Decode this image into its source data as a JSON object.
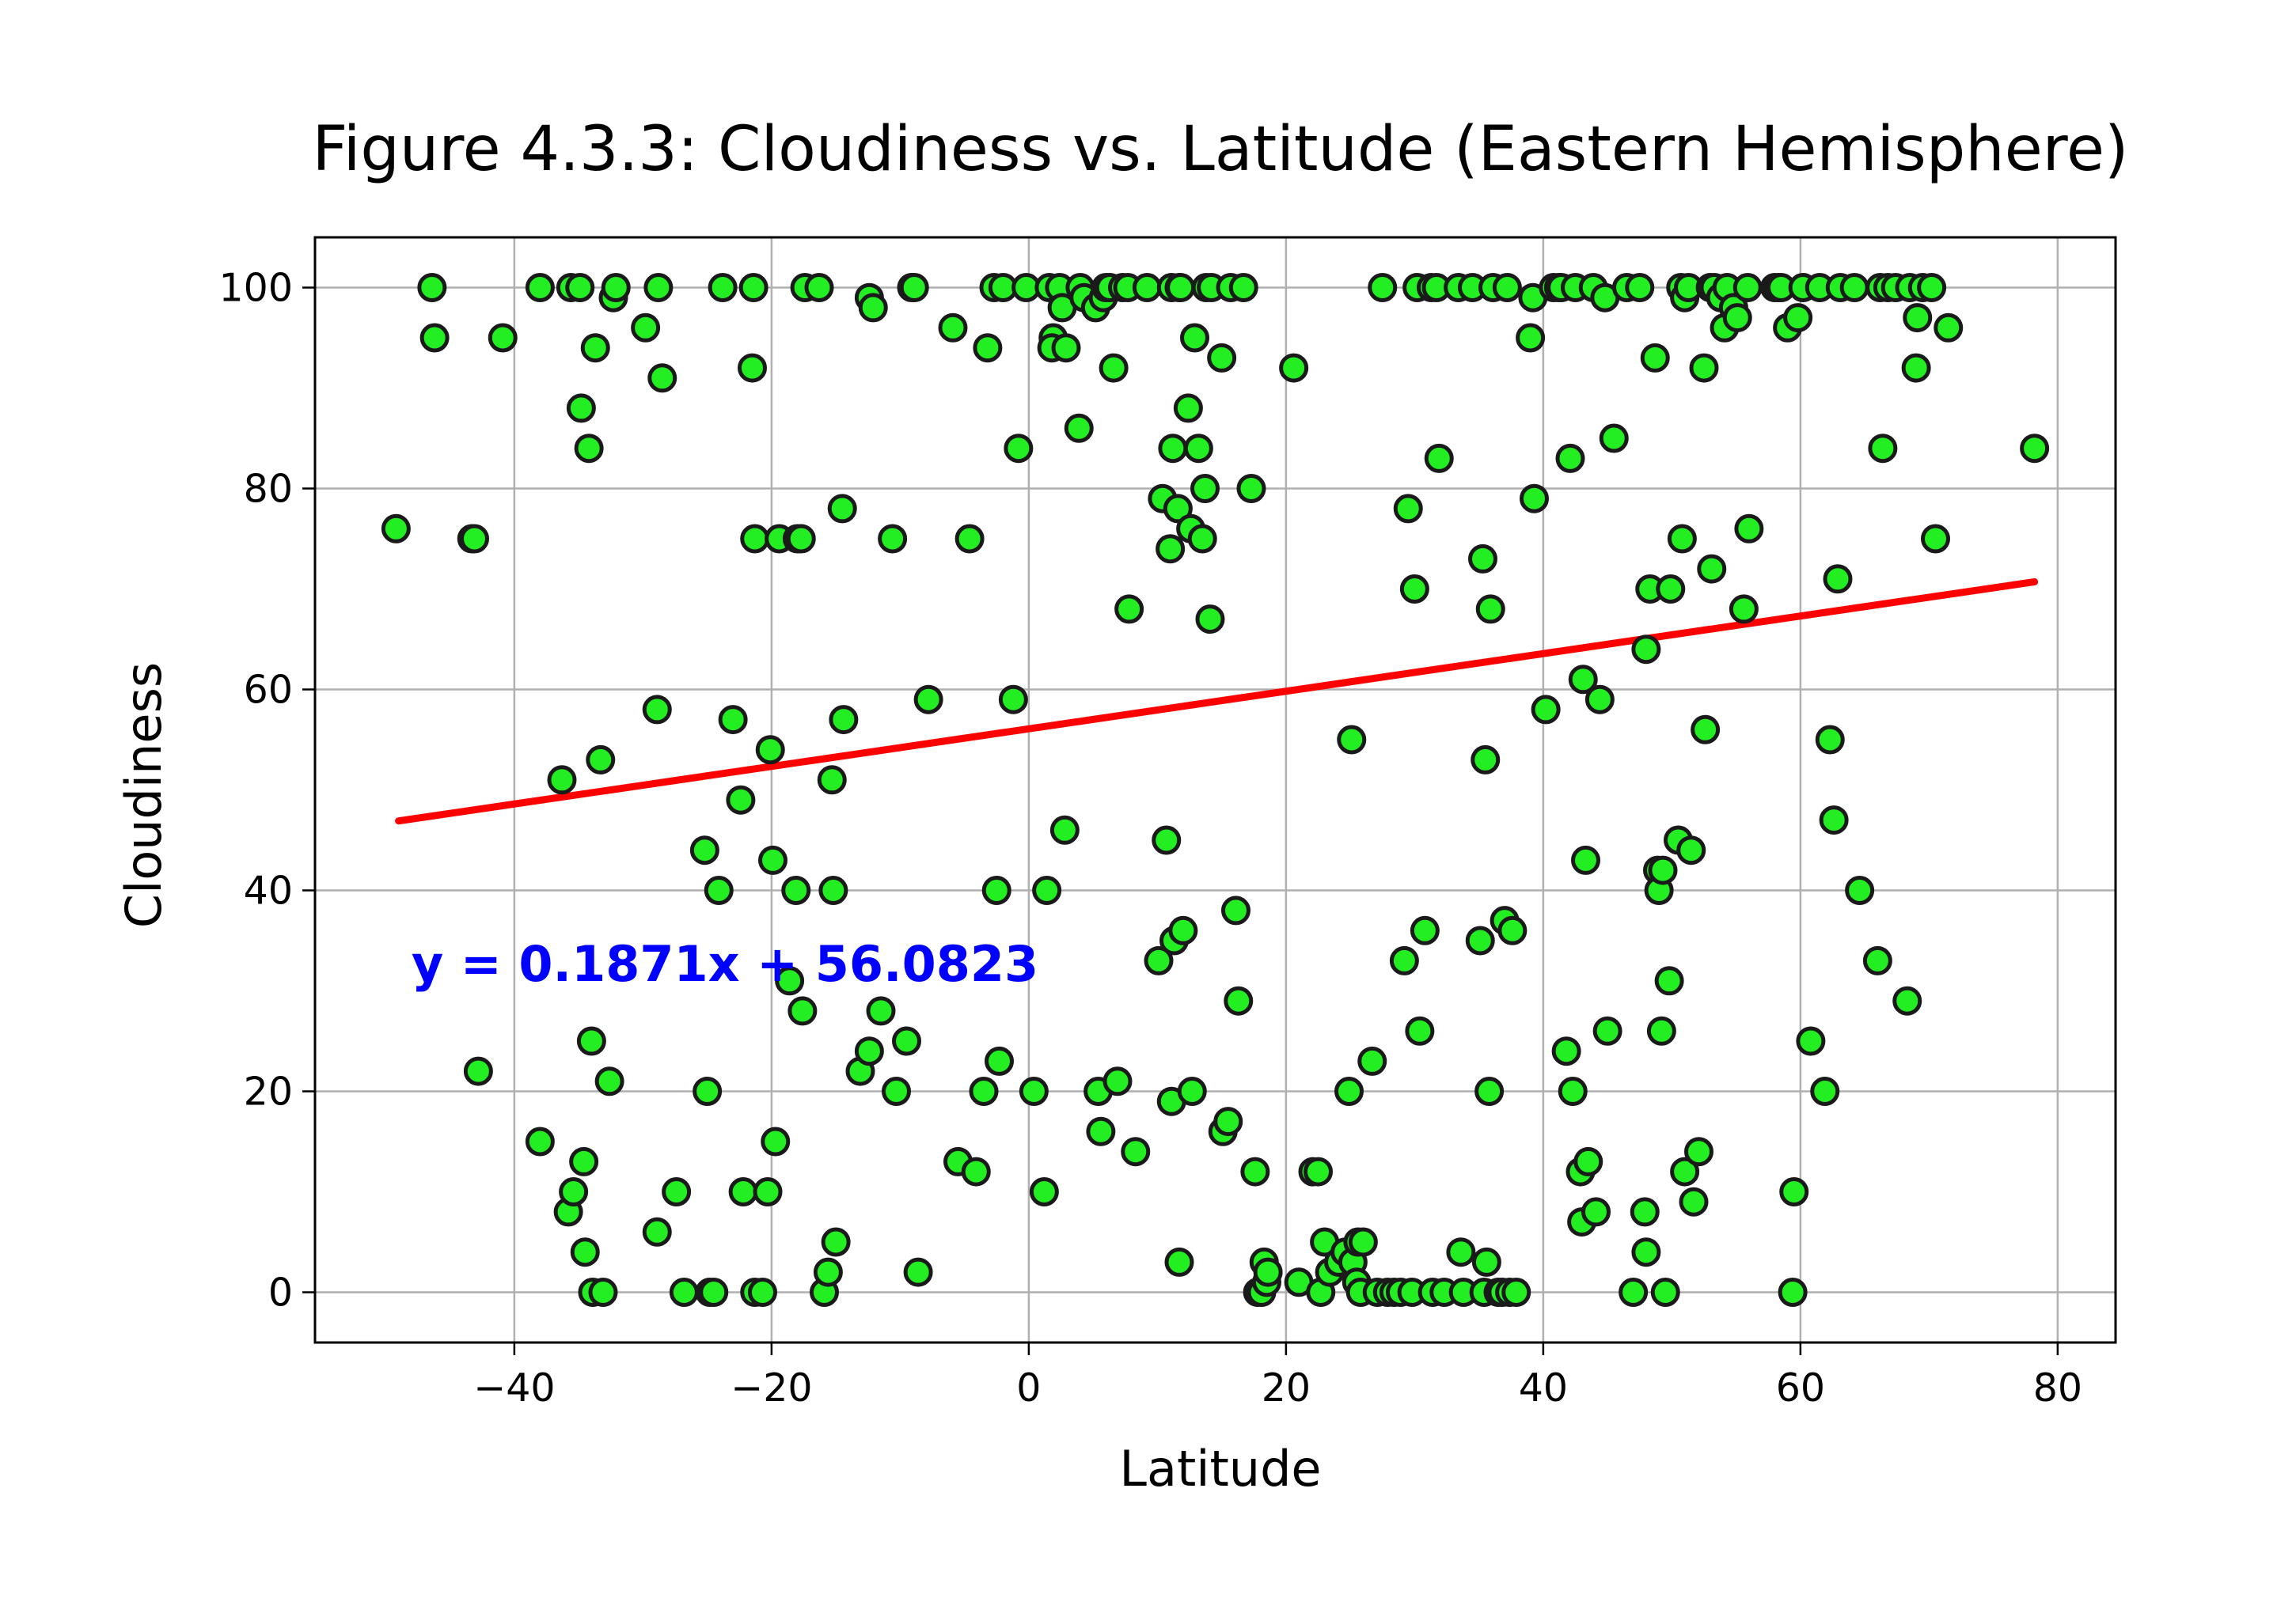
{
  "chart_data": {
    "type": "scatter",
    "title": "Figure 4.3.3: Cloudiness vs. Latitude (Eastern Hemisphere)",
    "xlabel": "Latitude",
    "ylabel": "Cloudiness",
    "xlim": [
      -55.5,
      84.5
    ],
    "ylim": [
      -5,
      105
    ],
    "xticks": [
      -40,
      -20,
      0,
      20,
      40,
      60,
      80
    ],
    "yticks": [
      0,
      20,
      40,
      60,
      80,
      100
    ],
    "xtick_labels": [
      "−40",
      "−20",
      "0",
      "20",
      "40",
      "60",
      "80"
    ],
    "ytick_labels": [
      "0",
      "20",
      "40",
      "60",
      "80",
      "100"
    ],
    "grid": true,
    "colors": {
      "point_fill": "#22ee22",
      "point_edge": "#1a1a1a",
      "regression_line": "#ff0000",
      "equation_text": "#0000ff"
    },
    "regression": {
      "equation": "y = 0.1871x + 56.0823",
      "slope": 0.1871,
      "intercept": 56.0823,
      "x_range": [
        -49,
        78.2
      ],
      "label_position_data": [
        -48,
        31
      ]
    },
    "series": [
      {
        "points": [
          [
            -49.2,
            76
          ],
          [
            -46.4,
            100
          ],
          [
            -46.2,
            95
          ],
          [
            -43.3,
            75
          ],
          [
            -43.1,
            75
          ],
          [
            -42.8,
            22
          ],
          [
            -40.9,
            95
          ],
          [
            -38,
            100
          ],
          [
            -38,
            15
          ],
          [
            -36.3,
            51
          ],
          [
            -35.8,
            8
          ],
          [
            -35.6,
            100
          ],
          [
            -35.4,
            10
          ],
          [
            -34.9,
            100
          ],
          [
            -34.8,
            88
          ],
          [
            -34.6,
            13
          ],
          [
            -34.5,
            4
          ],
          [
            -34.2,
            84
          ],
          [
            -34,
            25
          ],
          [
            -33.9,
            0
          ],
          [
            -33.7,
            94
          ],
          [
            -33.3,
            53
          ],
          [
            -33.1,
            0
          ],
          [
            -32.6,
            21
          ],
          [
            -32.3,
            99
          ],
          [
            -32.1,
            100
          ],
          [
            -29.8,
            96
          ],
          [
            -28.9,
            58
          ],
          [
            -28.8,
            100
          ],
          [
            -28.9,
            6
          ],
          [
            -28.5,
            91
          ],
          [
            -27.4,
            10
          ],
          [
            -26.8,
            0
          ],
          [
            -25.2,
            44
          ],
          [
            -25,
            20
          ],
          [
            -24.8,
            0
          ],
          [
            -24.5,
            0
          ],
          [
            -24.1,
            40
          ],
          [
            -23.8,
            100
          ],
          [
            -23,
            57
          ],
          [
            -22.4,
            49
          ],
          [
            -22.2,
            10
          ],
          [
            -21.5,
            92
          ],
          [
            -21.4,
            100
          ],
          [
            -21.3,
            75
          ],
          [
            -21.3,
            0
          ],
          [
            -20.7,
            0
          ],
          [
            -20.3,
            10
          ],
          [
            -20.1,
            54
          ],
          [
            -19.9,
            43
          ],
          [
            -19.7,
            15
          ],
          [
            -19.4,
            75
          ],
          [
            -18.6,
            31
          ],
          [
            -18.1,
            40
          ],
          [
            -18,
            75
          ],
          [
            -17.7,
            75
          ],
          [
            -17.6,
            28
          ],
          [
            -17.4,
            100
          ],
          [
            -16.3,
            100
          ],
          [
            -15.9,
            0
          ],
          [
            -15.6,
            2
          ],
          [
            -15.3,
            51
          ],
          [
            -15.2,
            40
          ],
          [
            -15,
            5
          ],
          [
            -14.4,
            57
          ],
          [
            -14.5,
            78
          ],
          [
            -13.1,
            22
          ],
          [
            -12.4,
            99
          ],
          [
            -12.4,
            24
          ],
          [
            -12.1,
            98
          ],
          [
            -11.5,
            28
          ],
          [
            -10.6,
            75
          ],
          [
            -10.3,
            20
          ],
          [
            -9.5,
            25
          ],
          [
            -9.1,
            100
          ],
          [
            -8.9,
            100
          ],
          [
            -8.6,
            2
          ],
          [
            -7.8,
            59
          ],
          [
            -5.9,
            96
          ],
          [
            -5.5,
            13
          ],
          [
            -4.6,
            75
          ],
          [
            -4.1,
            12
          ],
          [
            -3.5,
            20
          ],
          [
            -3.2,
            94
          ],
          [
            -2.7,
            100
          ],
          [
            -2.5,
            40
          ],
          [
            -2.3,
            23
          ],
          [
            -2,
            100
          ],
          [
            -1.2,
            59
          ],
          [
            -0.8,
            84
          ],
          [
            -0.2,
            100
          ],
          [
            0.4,
            20
          ],
          [
            1.2,
            10
          ],
          [
            1.4,
            40
          ],
          [
            1.6,
            100
          ],
          [
            1.9,
            95
          ],
          [
            1.8,
            94
          ],
          [
            2.4,
            100
          ],
          [
            2.6,
            98
          ],
          [
            2.8,
            46
          ],
          [
            2.9,
            94
          ],
          [
            3.9,
            86
          ],
          [
            4,
            100
          ],
          [
            4.3,
            99
          ],
          [
            5.2,
            98
          ],
          [
            5.4,
            20
          ],
          [
            5.6,
            16
          ],
          [
            5.8,
            99
          ],
          [
            6,
            100
          ],
          [
            6.3,
            100
          ],
          [
            6.6,
            92
          ],
          [
            6.9,
            21
          ],
          [
            7.3,
            100
          ],
          [
            7.7,
            100
          ],
          [
            7.8,
            68
          ],
          [
            8.3,
            14
          ],
          [
            9.2,
            100
          ],
          [
            10.1,
            33
          ],
          [
            10.4,
            79
          ],
          [
            10.7,
            45
          ],
          [
            11.1,
            100
          ],
          [
            11.2,
            84
          ],
          [
            11.3,
            35
          ],
          [
            11.1,
            19
          ],
          [
            11,
            74
          ],
          [
            11.6,
            78
          ],
          [
            11.7,
            3
          ],
          [
            11.7,
            100
          ],
          [
            11.8,
            100
          ],
          [
            12,
            36
          ],
          [
            12.4,
            88
          ],
          [
            12.6,
            76
          ],
          [
            12.7,
            20
          ],
          [
            12.9,
            95
          ],
          [
            13.2,
            84
          ],
          [
            13.5,
            75
          ],
          [
            13.7,
            80
          ],
          [
            13.8,
            100
          ],
          [
            14.1,
            67
          ],
          [
            14.2,
            100
          ],
          [
            15,
            93
          ],
          [
            15.1,
            16
          ],
          [
            15.5,
            17
          ],
          [
            15.7,
            100
          ],
          [
            16.1,
            38
          ],
          [
            16.3,
            29
          ],
          [
            16.7,
            100
          ],
          [
            17.3,
            80
          ],
          [
            17.6,
            12
          ],
          [
            17.8,
            0
          ],
          [
            18.1,
            0
          ],
          [
            18.3,
            3
          ],
          [
            18.5,
            1
          ],
          [
            18.6,
            2
          ],
          [
            20.6,
            92
          ],
          [
            21,
            1
          ],
          [
            22.1,
            12
          ],
          [
            22.5,
            12
          ],
          [
            22.7,
            0
          ],
          [
            23,
            5
          ],
          [
            23.4,
            2
          ],
          [
            24.1,
            3
          ],
          [
            24.6,
            4
          ],
          [
            24.9,
            20
          ],
          [
            25.1,
            55
          ],
          [
            25.2,
            3
          ],
          [
            25.5,
            1
          ],
          [
            25.8,
            0
          ],
          [
            25.6,
            5
          ],
          [
            26,
            5
          ],
          [
            26.7,
            23
          ],
          [
            27.1,
            0
          ],
          [
            27.5,
            100
          ],
          [
            27.9,
            0
          ],
          [
            28.4,
            0
          ],
          [
            28.9,
            0
          ],
          [
            29.2,
            33
          ],
          [
            29.5,
            78
          ],
          [
            29.8,
            0
          ],
          [
            30,
            70
          ],
          [
            30.2,
            100
          ],
          [
            30.4,
            26
          ],
          [
            30.8,
            36
          ],
          [
            31.3,
            100
          ],
          [
            31.4,
            0
          ],
          [
            31.7,
            100
          ],
          [
            31.9,
            83
          ],
          [
            32.3,
            0
          ],
          [
            33.4,
            100
          ],
          [
            33.6,
            4
          ],
          [
            33.8,
            0
          ],
          [
            34.5,
            100
          ],
          [
            35.1,
            35
          ],
          [
            35.3,
            73
          ],
          [
            35.4,
            0
          ],
          [
            35.5,
            53
          ],
          [
            35.6,
            3
          ],
          [
            35.8,
            20
          ],
          [
            35.9,
            68
          ],
          [
            36.1,
            100
          ],
          [
            36.5,
            0
          ],
          [
            36.8,
            0
          ],
          [
            37,
            37
          ],
          [
            37.2,
            100
          ],
          [
            37.4,
            0
          ],
          [
            37.6,
            36
          ],
          [
            37.9,
            0
          ],
          [
            39,
            95
          ],
          [
            39.2,
            99
          ],
          [
            39.3,
            79
          ],
          [
            40.2,
            58
          ],
          [
            40.8,
            100
          ],
          [
            41.2,
            100
          ],
          [
            41.4,
            100
          ],
          [
            41.8,
            24
          ],
          [
            42.1,
            83
          ],
          [
            42.3,
            20
          ],
          [
            42.5,
            100
          ],
          [
            42.9,
            12
          ],
          [
            43,
            7
          ],
          [
            43.1,
            61
          ],
          [
            43.3,
            43
          ],
          [
            43.5,
            13
          ],
          [
            43.9,
            100
          ],
          [
            44.1,
            8
          ],
          [
            44.4,
            59
          ],
          [
            44.8,
            99
          ],
          [
            45,
            26
          ],
          [
            45.5,
            85
          ],
          [
            46.5,
            100
          ],
          [
            47,
            0
          ],
          [
            47.5,
            100
          ],
          [
            47.9,
            8
          ],
          [
            48,
            4
          ],
          [
            48,
            64
          ],
          [
            48.3,
            70
          ],
          [
            48.7,
            93
          ],
          [
            48.9,
            42
          ],
          [
            49,
            40
          ],
          [
            49.2,
            26
          ],
          [
            49.3,
            42
          ],
          [
            49.5,
            0
          ],
          [
            49.8,
            31
          ],
          [
            49.9,
            70
          ],
          [
            50.5,
            45
          ],
          [
            50.7,
            100
          ],
          [
            50.8,
            75
          ],
          [
            51,
            99
          ],
          [
            51,
            12
          ],
          [
            51.3,
            100
          ],
          [
            51.5,
            44
          ],
          [
            51.7,
            9
          ],
          [
            52.1,
            14
          ],
          [
            52.5,
            92
          ],
          [
            52.6,
            56
          ],
          [
            53,
            100
          ],
          [
            53.1,
            72
          ],
          [
            53.3,
            100
          ],
          [
            53.8,
            99
          ],
          [
            54.1,
            96
          ],
          [
            54.3,
            100
          ],
          [
            54.8,
            98
          ],
          [
            55.1,
            97
          ],
          [
            55.6,
            68
          ],
          [
            55.9,
            100
          ],
          [
            56,
            76
          ],
          [
            58,
            100
          ],
          [
            58.3,
            100
          ],
          [
            58.5,
            100
          ],
          [
            59,
            96
          ],
          [
            59.4,
            0
          ],
          [
            59.5,
            10
          ],
          [
            59.8,
            97
          ],
          [
            60.2,
            100
          ],
          [
            60.8,
            25
          ],
          [
            61.5,
            100
          ],
          [
            61.9,
            20
          ],
          [
            62.3,
            55
          ],
          [
            62.6,
            47
          ],
          [
            62.9,
            71
          ],
          [
            63.1,
            100
          ],
          [
            64.2,
            100
          ],
          [
            64.6,
            40
          ],
          [
            66,
            33
          ],
          [
            66.2,
            100
          ],
          [
            66.4,
            84
          ],
          [
            66.8,
            100
          ],
          [
            67.4,
            100
          ],
          [
            68.3,
            29
          ],
          [
            68.5,
            100
          ],
          [
            69,
            92
          ],
          [
            69.1,
            97
          ],
          [
            69.5,
            100
          ],
          [
            70.2,
            100
          ],
          [
            70.5,
            75
          ],
          [
            71.5,
            96
          ],
          [
            78.2,
            84
          ]
        ]
      }
    ]
  }
}
